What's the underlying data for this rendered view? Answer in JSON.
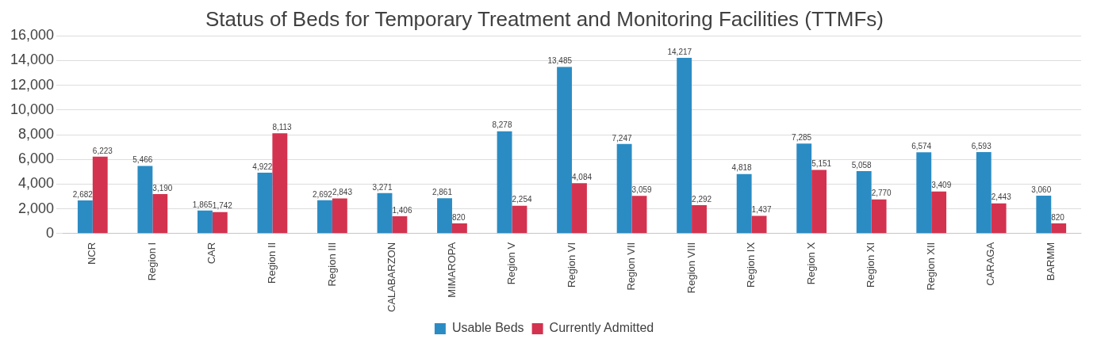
{
  "chart_data": {
    "type": "bar",
    "title": "Status of Beds for Temporary Treatment and Monitoring Facilities (TTMFs)",
    "categories": [
      "NCR",
      "Region I",
      "CAR",
      "Region II",
      "Region III",
      "CALABARZON",
      "MIMAROPA",
      "Region V",
      "Region VI",
      "Region VII",
      "Region VIII",
      "Region IX",
      "Region X",
      "Region XI",
      "Region XII",
      "CARAGA",
      "BARMM"
    ],
    "series": [
      {
        "name": "Usable Beds",
        "color": "#2b8cc4",
        "values": [
          2682,
          5466,
          1865,
          4922,
          2692,
          3271,
          2861,
          8278,
          13485,
          7247,
          14217,
          4818,
          7285,
          5058,
          6574,
          6593,
          3060
        ],
        "value_labels": [
          "2,682",
          "5,466",
          "1,865",
          "4,922",
          "2,692",
          "3,271",
          "2,861",
          "8,278",
          "13,485",
          "7,247",
          "14,217",
          "4,818",
          "7,285",
          "5,058",
          "6,574",
          "6,593",
          "3,060"
        ]
      },
      {
        "name": "Currently Admitted",
        "color": "#d3334f",
        "values": [
          6223,
          3190,
          1742,
          8113,
          2843,
          1406,
          820,
          2254,
          4084,
          3059,
          2292,
          1437,
          5151,
          2770,
          3409,
          2443,
          820
        ],
        "value_labels": [
          "6,223",
          "3,190",
          "1,742",
          "8,113",
          "2,843",
          "1,406",
          "820",
          "2,254",
          "4,084",
          "3,059",
          "2,292",
          "1,437",
          "5,151",
          "2,770",
          "3,409",
          "2,443",
          "820"
        ]
      }
    ],
    "ylim": [
      0,
      16000
    ],
    "yticks": [
      {
        "value": 0,
        "label": "0"
      },
      {
        "value": 2000,
        "label": "2,000"
      },
      {
        "value": 4000,
        "label": "4,000"
      },
      {
        "value": 6000,
        "label": "6,000"
      },
      {
        "value": 8000,
        "label": "8,000"
      },
      {
        "value": 10000,
        "label": "10,000"
      },
      {
        "value": 12000,
        "label": "12,000"
      },
      {
        "value": 14000,
        "label": "14,000"
      },
      {
        "value": 16000,
        "label": "16,000"
      }
    ],
    "grid": "y",
    "legend": "bottom"
  }
}
